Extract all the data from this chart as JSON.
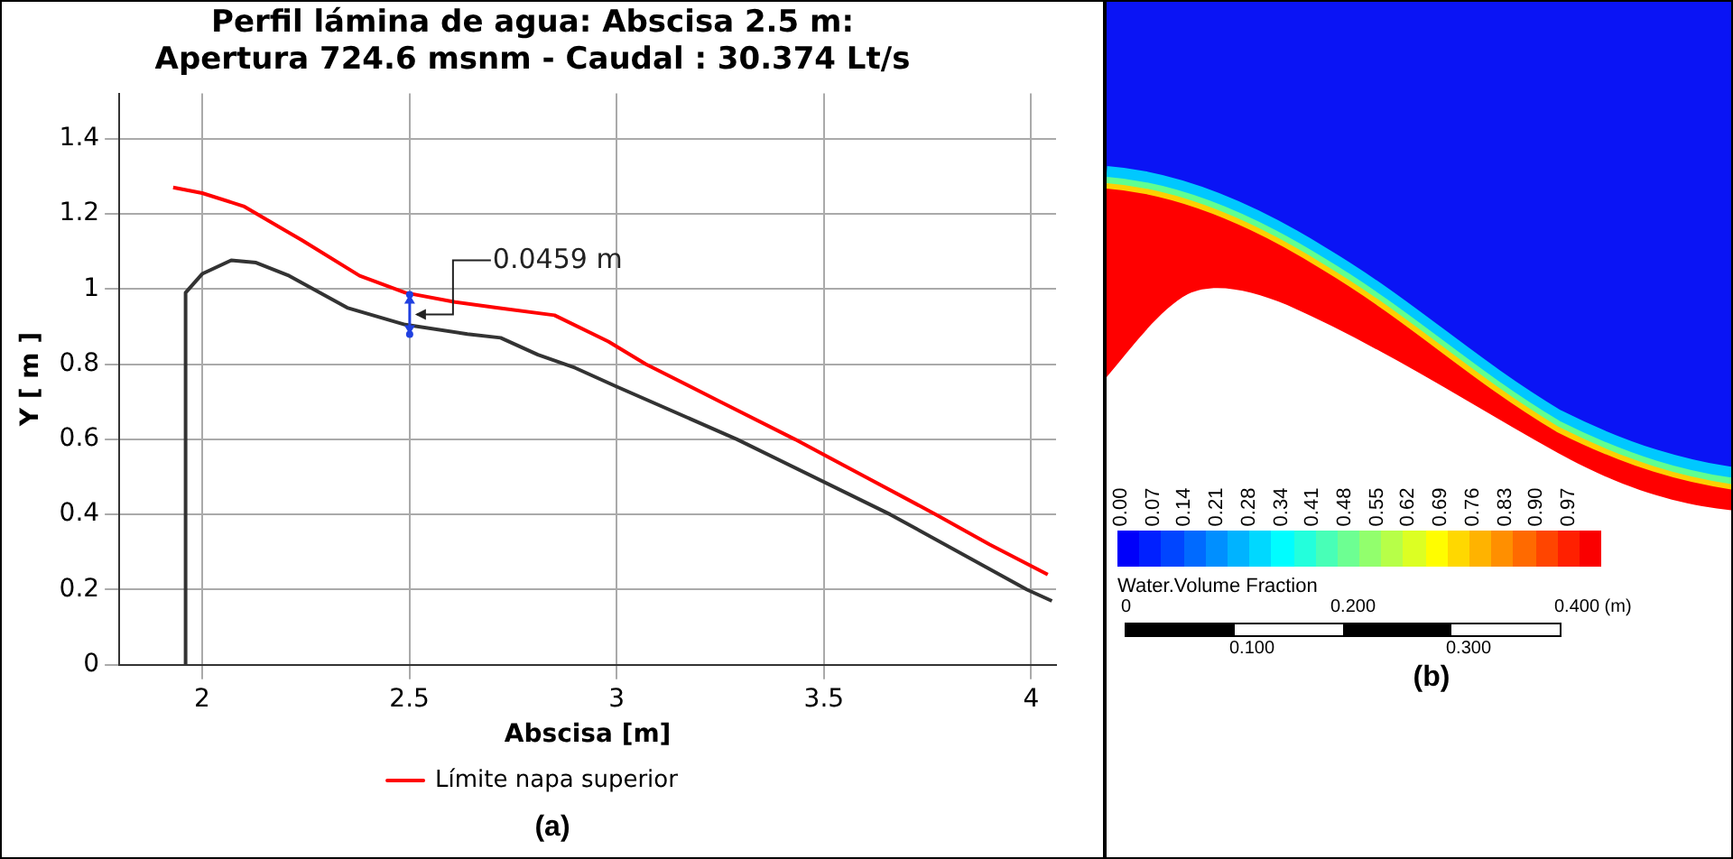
{
  "chart_data": [
    {
      "type": "line",
      "title": "Perfil lámina de agua: Abscisa 2.5 m:\nApertura 724.6 msnm - Caudal : 30.374 Lt/s",
      "xlabel": "Abscisa [m]",
      "ylabel": "Y [ m ]",
      "xlim": [
        1.8,
        4.06
      ],
      "xticks": [
        2,
        2.5,
        3,
        3.5,
        4
      ],
      "ylim": [
        0,
        1.52
      ],
      "yticks": [
        0,
        0.2,
        0.4,
        0.6,
        0.8,
        1,
        1.2,
        1.4
      ],
      "grid": true,
      "legend": "bottom",
      "marker": "none",
      "line_style": "solid",
      "series": [
        {
          "name": "Límite napa superior",
          "color": "#ff0000",
          "x": [
            1.93,
            2.0,
            2.1,
            2.24,
            2.38,
            2.49,
            2.61,
            2.71,
            2.85,
            2.98,
            3.07,
            3.25,
            3.43,
            3.6,
            3.77,
            3.9,
            4.04
          ],
          "values": [
            1.27,
            1.255,
            1.22,
            1.13,
            1.035,
            0.99,
            0.965,
            0.95,
            0.93,
            0.86,
            0.8,
            0.7,
            0.6,
            0.5,
            0.4,
            0.32,
            0.24
          ]
        },
        {
          "color": "#333333",
          "x": [
            1.96,
            1.96,
            2.0,
            2.07,
            2.13,
            2.21,
            2.35,
            2.49,
            2.64,
            2.72,
            2.81,
            2.9,
            3.0,
            3.29,
            3.66,
            3.99,
            4.05
          ],
          "values": [
            0,
            0.99,
            1.04,
            1.076,
            1.07,
            1.035,
            0.95,
            0.905,
            0.88,
            0.87,
            0.825,
            0.79,
            0.74,
            0.6,
            0.4,
            0.2,
            0.17
          ]
        }
      ],
      "annotations": [
        "0.0459 m",
        "(a)"
      ]
    },
    {
      "type": "other",
      "clabel": "Water.Volume Fraction",
      "annotations": [
        "0.00",
        "0.07",
        "0.14",
        "0.21",
        "0.28",
        "0.34",
        "0.41",
        "0.48",
        "0.55",
        "0.62",
        "0.69",
        "0.76",
        "0.83",
        "0.90",
        "0.97",
        "0",
        "0.200",
        "0.400 (m)",
        "0.100",
        "0.300",
        "(b)"
      ]
    }
  ]
}
